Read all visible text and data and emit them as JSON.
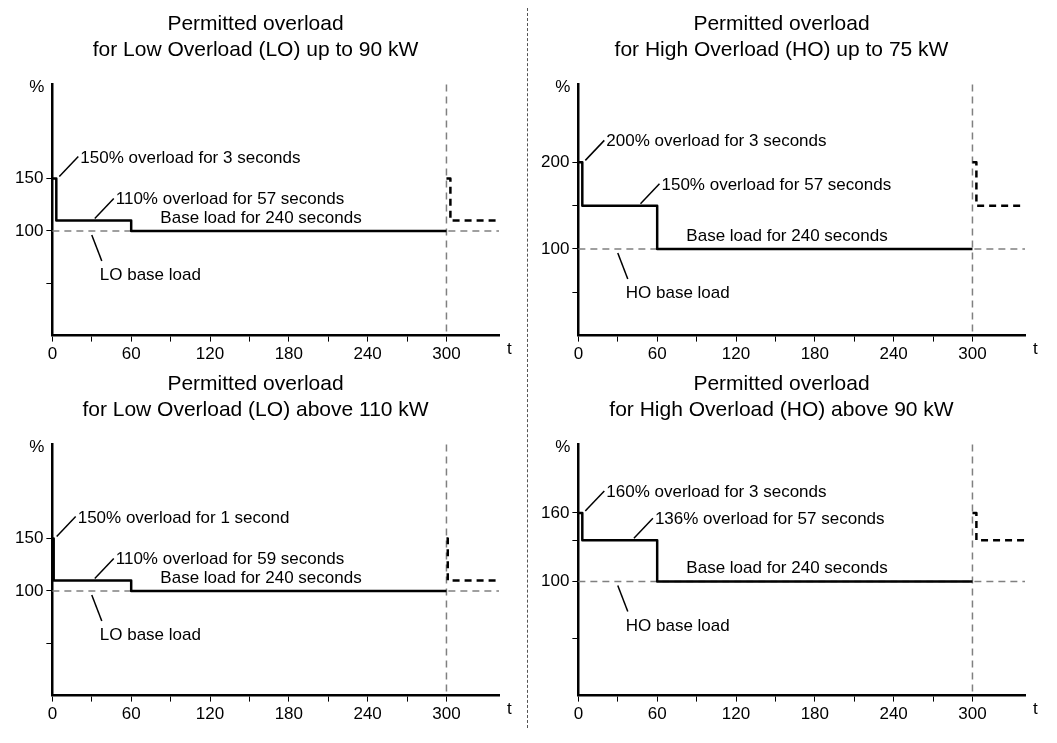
{
  "chart_data": [
    {
      "type": "step",
      "title": "Permitted overload",
      "subtitle": "for Low Overload (LO) up to 90 kW",
      "xlabel": "t",
      "ylabel": "%",
      "series": [
        {
          "color": "#000000",
          "x": [
            0,
            3,
            60,
            300
          ],
          "values": [
            150,
            110,
            100,
            100
          ]
        },
        {
          "color": "#000000",
          "line_style": "dashed",
          "x": [
            300,
            303,
            340
          ],
          "values": [
            150,
            110,
            110
          ]
        }
      ],
      "xlim": [
        0,
        340
      ],
      "xticks": [
        0,
        {
          "value": 30,
          "label": null
        },
        60,
        {
          "value": 90,
          "label": null
        },
        120,
        {
          "value": 150,
          "label": null
        },
        180,
        {
          "value": 210,
          "label": null
        },
        240,
        {
          "value": 270,
          "label": null
        },
        300
      ],
      "ylim": [
        0,
        240
      ],
      "yticks": [
        {
          "value": 50,
          "label": null
        },
        100,
        150
      ],
      "ref_lines": [
        {
          "axis": "y",
          "value": 100,
          "label": "LO base load",
          "color": "#808080",
          "line_style": "dashed"
        },
        {
          "axis": "x",
          "value": 300,
          "color": "#808080",
          "line_style": "dashed"
        }
      ],
      "annotations": [
        {
          "text": "150% overload for 3 seconds",
          "x": 3,
          "y": 150
        },
        {
          "text": "110% overload for 57 seconds",
          "x": 30,
          "y": 110
        },
        {
          "text": "Base load for 240 seconds",
          "x": 240,
          "y": 100
        }
      ],
      "grid": false,
      "legend": false
    },
    {
      "type": "step",
      "title": "Permitted overload",
      "subtitle": "for High Overload (HO) up to 75 kW",
      "xlabel": "t",
      "ylabel": "%",
      "series": [
        {
          "color": "#000000",
          "x": [
            0,
            3,
            60,
            300
          ],
          "values": [
            200,
            150,
            100,
            100
          ]
        },
        {
          "color": "#000000",
          "line_style": "dashed",
          "x": [
            300,
            303,
            340
          ],
          "values": [
            200,
            150,
            150
          ]
        }
      ],
      "xlim": [
        0,
        340
      ],
      "xticks": [
        0,
        {
          "value": 30,
          "label": null
        },
        60,
        {
          "value": 90,
          "label": null
        },
        120,
        {
          "value": 150,
          "label": null
        },
        180,
        {
          "value": 210,
          "label": null
        },
        240,
        {
          "value": 270,
          "label": null
        },
        300
      ],
      "ylim": [
        0,
        290
      ],
      "yticks": [
        {
          "value": 50,
          "label": null
        },
        100,
        {
          "value": 150,
          "label": null
        },
        200
      ],
      "ref_lines": [
        {
          "axis": "y",
          "value": 100,
          "label": "HO base load",
          "color": "#808080",
          "line_style": "dashed"
        },
        {
          "axis": "x",
          "value": 300,
          "color": "#808080",
          "line_style": "dashed"
        }
      ],
      "annotations": [
        {
          "text": "200% overload for 3 seconds",
          "x": 3,
          "y": 200
        },
        {
          "text": "150% overload for 57 seconds",
          "x": 45,
          "y": 150
        },
        {
          "text": "Base load for 240 seconds",
          "x": 240,
          "y": 100
        }
      ],
      "grid": false,
      "legend": false
    },
    {
      "type": "step",
      "title": "Permitted overload",
      "subtitle": "for Low Overload (LO) above 110 kW",
      "xlabel": "t",
      "ylabel": "%",
      "series": [
        {
          "color": "#000000",
          "x": [
            0,
            1,
            60,
            300
          ],
          "values": [
            150,
            110,
            100,
            100
          ]
        },
        {
          "color": "#000000",
          "line_style": "dashed",
          "x": [
            300,
            301,
            340
          ],
          "values": [
            150,
            110,
            110
          ]
        }
      ],
      "xlim": [
        0,
        340
      ],
      "xticks": [
        0,
        {
          "value": 30,
          "label": null
        },
        60,
        {
          "value": 90,
          "label": null
        },
        120,
        {
          "value": 150,
          "label": null
        },
        180,
        {
          "value": 210,
          "label": null
        },
        240,
        {
          "value": 270,
          "label": null
        },
        300
      ],
      "ylim": [
        0,
        240
      ],
      "yticks": [
        {
          "value": 50,
          "label": null
        },
        100,
        150
      ],
      "ref_lines": [
        {
          "axis": "y",
          "value": 100,
          "label": "LO base load",
          "color": "#808080",
          "line_style": "dashed"
        },
        {
          "axis": "x",
          "value": 300,
          "color": "#808080",
          "line_style": "dashed"
        }
      ],
      "annotations": [
        {
          "text": "150% overload for 1 second",
          "x": 1,
          "y": 150
        },
        {
          "text": "110% overload for 59 seconds",
          "x": 30,
          "y": 110
        },
        {
          "text": "Base load for 240 seconds",
          "x": 240,
          "y": 100
        }
      ],
      "grid": false,
      "legend": false
    },
    {
      "type": "step",
      "title": "Permitted overload",
      "subtitle": "for High Overload (HO) above 90 kW",
      "xlabel": "t",
      "ylabel": "%",
      "series": [
        {
          "color": "#000000",
          "x": [
            0,
            3,
            60,
            300
          ],
          "values": [
            160,
            136,
            100,
            100
          ]
        },
        {
          "color": "#000000",
          "line_style": "dashed",
          "x": [
            300,
            303,
            340
          ],
          "values": [
            160,
            136,
            136
          ]
        }
      ],
      "xlim": [
        0,
        340
      ],
      "xticks": [
        0,
        {
          "value": 30,
          "label": null
        },
        60,
        {
          "value": 90,
          "label": null
        },
        120,
        {
          "value": 150,
          "label": null
        },
        180,
        {
          "value": 210,
          "label": null
        },
        240,
        {
          "value": 270,
          "label": null
        },
        300
      ],
      "ylim": [
        0,
        220
      ],
      "yticks": [
        {
          "value": 50,
          "label": null
        },
        100,
        {
          "value": 136,
          "label": null
        },
        160
      ],
      "ref_lines": [
        {
          "axis": "y",
          "value": 100,
          "label": "HO base load",
          "color": "#808080",
          "line_style": "dashed"
        },
        {
          "axis": "x",
          "value": 300,
          "color": "#808080",
          "line_style": "dashed"
        }
      ],
      "annotations": [
        {
          "text": "160% overload for 3 seconds",
          "x": 3,
          "y": 160
        },
        {
          "text": "136% overload for 57 seconds",
          "x": 40,
          "y": 136
        },
        {
          "text": "Base load for 240 seconds",
          "x": 240,
          "y": 100
        }
      ],
      "grid": false,
      "legend": false
    }
  ]
}
